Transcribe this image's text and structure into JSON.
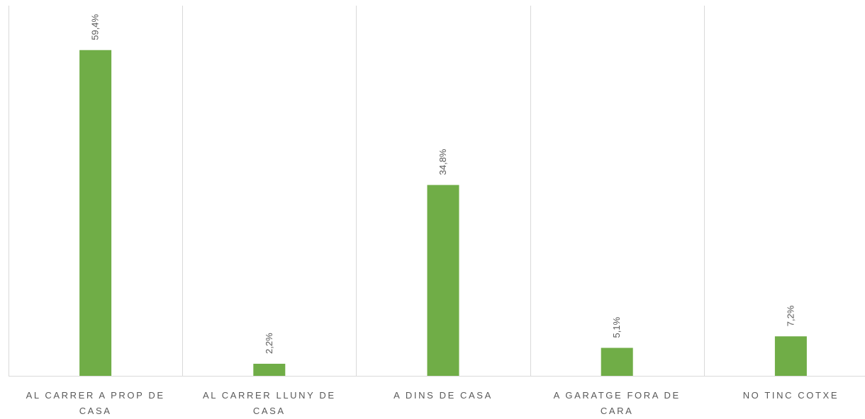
{
  "chart_data": {
    "type": "bar",
    "categories": [
      [
        "AL CARRER A PROP DE",
        "CASA"
      ],
      [
        "AL CARRER LLUNY DE",
        "CASA"
      ],
      [
        "A DINS DE CASA"
      ],
      [
        "A GARATGE FORA DE",
        "CARA"
      ],
      [
        "NO TINC COTXE"
      ]
    ],
    "values": [
      59.4,
      2.2,
      34.8,
      5.1,
      7.2
    ],
    "data_labels": [
      "59,4%",
      "2,2%",
      "34,8%",
      "5,1%",
      "7,2%"
    ],
    "ylim": [
      0,
      67.5
    ],
    "grid": "vertical category separators",
    "legend": "none",
    "bar_color": "#70AD47",
    "gridline_color": "#D9D9D9",
    "text_color": "#595959"
  }
}
